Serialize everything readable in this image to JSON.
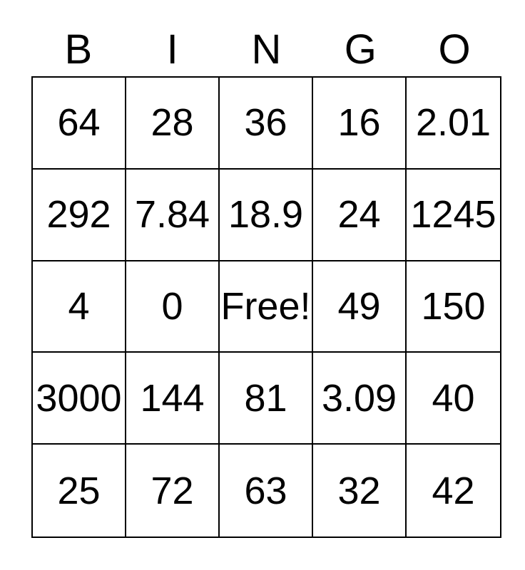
{
  "card": {
    "title": "BINGO",
    "header": {
      "letters": [
        "B",
        "I",
        "N",
        "G",
        "O"
      ]
    },
    "grid": {
      "rows": [
        {
          "cells": [
            "64",
            "28",
            "36",
            "16",
            "2.01"
          ]
        },
        {
          "cells": [
            "292",
            "7.84",
            "18.9",
            "24",
            "1245"
          ]
        },
        {
          "cells": [
            "4",
            "0",
            "Free!",
            "49",
            "150"
          ]
        },
        {
          "cells": [
            "3000",
            "144",
            "81",
            "3.09",
            "40"
          ]
        },
        {
          "cells": [
            "25",
            "72",
            "63",
            "32",
            "42"
          ]
        }
      ],
      "free_space": {
        "row": 2,
        "col": 2,
        "label": "Free!"
      }
    },
    "colors": {
      "background": "#ffffff",
      "text": "#000000",
      "grid_border": "#000000"
    }
  }
}
